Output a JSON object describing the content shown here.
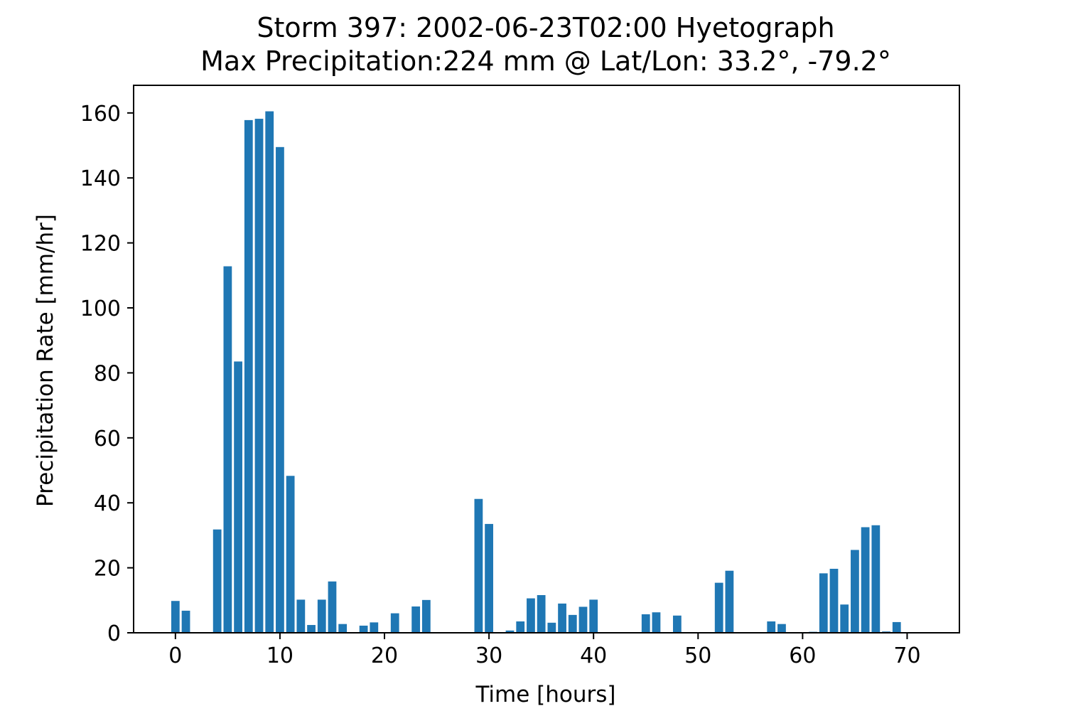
{
  "chart_data": {
    "type": "bar",
    "title": "Storm 397: 2002-06-23T02:00 Hyetograph",
    "subtitle": "Max Precipitation:224 mm @ Lat/Lon:  33.2°, -79.2°",
    "xlabel": "Time [hours]",
    "ylabel": "Precipitation Rate [mm/hr]",
    "xlim": [
      -4,
      75
    ],
    "ylim": [
      0,
      168.5
    ],
    "xticks": [
      0,
      10,
      20,
      30,
      40,
      50,
      60,
      70
    ],
    "yticks": [
      0,
      20,
      40,
      60,
      80,
      100,
      120,
      140,
      160
    ],
    "grid": false,
    "bar_color": "#1f77b4",
    "series": [
      {
        "x": [
          0,
          1,
          2,
          3,
          4,
          5,
          6,
          7,
          8,
          9,
          10,
          11,
          12,
          13,
          14,
          15,
          16,
          17,
          18,
          19,
          20,
          21,
          22,
          23,
          24,
          25,
          26,
          27,
          28,
          29,
          30,
          31,
          32,
          33,
          34,
          35,
          36,
          37,
          38,
          39,
          40,
          41,
          42,
          43,
          44,
          45,
          46,
          47,
          48,
          49,
          50,
          51,
          52,
          53,
          54,
          55,
          56,
          57,
          58,
          59,
          60,
          61,
          62,
          63,
          64,
          65,
          66,
          67,
          68,
          69,
          70,
          71
        ],
        "values": [
          9.8,
          6.8,
          0,
          0,
          31.8,
          112.8,
          83.5,
          157.8,
          158.2,
          160.5,
          149.5,
          48.3,
          10.2,
          2.4,
          10.2,
          15.8,
          2.7,
          0,
          2.2,
          3.2,
          0,
          6.0,
          0,
          8.1,
          10.1,
          0,
          0,
          0,
          0,
          41.2,
          33.5,
          0,
          0.7,
          3.5,
          10.6,
          11.6,
          3.1,
          9.0,
          5.5,
          8.0,
          10.2,
          0,
          0,
          0,
          0,
          5.7,
          6.3,
          0,
          5.3,
          0,
          0,
          0,
          15.4,
          19.1,
          0,
          0,
          0,
          3.5,
          2.7,
          0,
          0,
          0.3,
          18.3,
          19.7,
          8.7,
          25.5,
          32.5,
          33.1,
          0.4,
          3.3,
          0,
          0
        ]
      }
    ]
  }
}
